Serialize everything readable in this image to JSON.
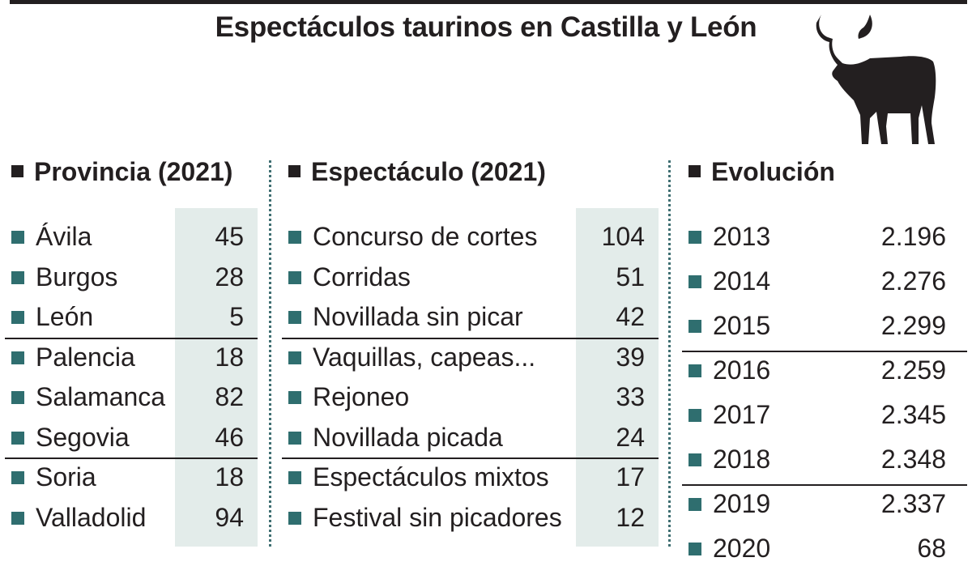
{
  "title": "Espectáculos taurinos en Castilla y León",
  "icons": {
    "bull": "bull-silhouette-icon"
  },
  "colors": {
    "bullet": "#2f6e6f",
    "shade": "#e3ecea",
    "separator": "#3f6f72",
    "text": "#231f20"
  },
  "chart_data": [
    {
      "type": "table",
      "title": "Provincia (2021)",
      "categories": [
        "Ávila",
        "Burgos",
        "León",
        "Palencia",
        "Salamanca",
        "Segovia",
        "Soria",
        "Valladolid"
      ],
      "values": [
        45,
        28,
        5,
        18,
        82,
        46,
        18,
        94
      ],
      "labels": [
        "45",
        "28",
        "5",
        "18",
        "82",
        "46",
        "18",
        "94"
      ]
    },
    {
      "type": "table",
      "title": "Espectáculo (2021)",
      "categories": [
        "Concurso de cortes",
        "Corridas",
        "Novillada sin picar",
        "Vaquillas, capeas...",
        "Rejoneo",
        "Novillada picada",
        "Espectáculos mixtos",
        "Festival sin picadores"
      ],
      "values": [
        104,
        51,
        42,
        39,
        33,
        24,
        17,
        12
      ],
      "labels": [
        "104",
        "51",
        "42",
        "39",
        "33",
        "24",
        "17",
        "12"
      ]
    },
    {
      "type": "table",
      "title": "Evolución",
      "categories": [
        "2013",
        "2014",
        "2015",
        "2016",
        "2017",
        "2018",
        "2019",
        "2020"
      ],
      "values": [
        2196,
        2276,
        2299,
        2259,
        2345,
        2348,
        2337,
        68
      ],
      "labels": [
        "2.196",
        "2.276",
        "2.299",
        "2.259",
        "2.345",
        "2.348",
        "2.337",
        "68"
      ]
    }
  ]
}
